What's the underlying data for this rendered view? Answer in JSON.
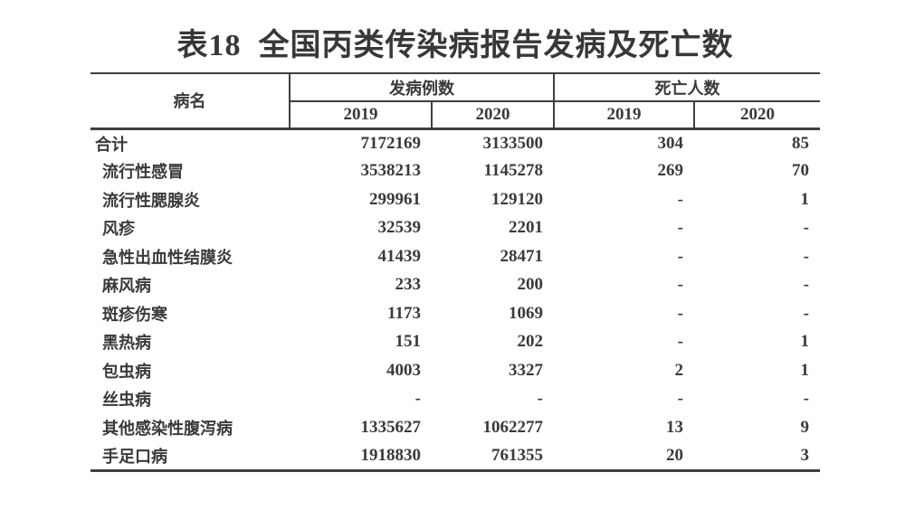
{
  "title": "表18  全国丙类传染病报告发病及死亡数",
  "table": {
    "disease_header": "病名",
    "cases_header": "发病例数",
    "deaths_header": "死亡人数",
    "year_headers": [
      "2019",
      "2020",
      "2019",
      "2020"
    ],
    "rows": [
      {
        "name": "合计",
        "values": [
          "7172169",
          "3133500",
          "304",
          "85"
        ]
      },
      {
        "name": "流行性感冒",
        "values": [
          "3538213",
          "1145278",
          "269",
          "70"
        ]
      },
      {
        "name": "流行性腮腺炎",
        "values": [
          "299961",
          "129120",
          "-",
          "1"
        ]
      },
      {
        "name": "风疹",
        "values": [
          "32539",
          "2201",
          "-",
          "-"
        ]
      },
      {
        "name": "急性出血性结膜炎",
        "values": [
          "41439",
          "28471",
          "-",
          "-"
        ]
      },
      {
        "name": "麻风病",
        "values": [
          "233",
          "200",
          "-",
          "-"
        ]
      },
      {
        "name": "斑疹伤寒",
        "values": [
          "1173",
          "1069",
          "-",
          "-"
        ]
      },
      {
        "name": "黑热病",
        "values": [
          "151",
          "202",
          "-",
          "1"
        ]
      },
      {
        "name": "包虫病",
        "values": [
          "4003",
          "3327",
          "2",
          "1"
        ]
      },
      {
        "name": "丝虫病",
        "values": [
          "-",
          "-",
          "-",
          "-"
        ]
      },
      {
        "name": "其他感染性腹泻病",
        "values": [
          "1335627",
          "1062277",
          "13",
          "9"
        ]
      },
      {
        "name": "手足口病",
        "values": [
          "1918830",
          "761355",
          "20",
          "3"
        ]
      }
    ]
  },
  "colors": {
    "text": "#3a3a3a",
    "border": "#3f3f3f",
    "background": "#ffffff"
  }
}
